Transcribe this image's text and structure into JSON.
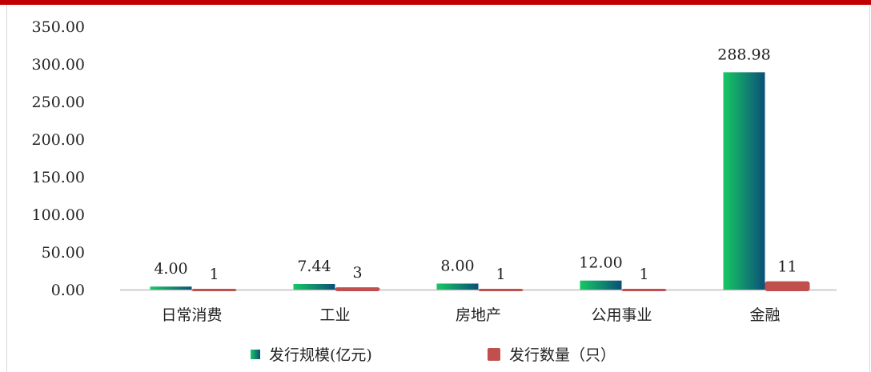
{
  "chart_data": {
    "type": "bar",
    "categories": [
      "日常消费",
      "工业",
      "房地产",
      "公用事业",
      "金融"
    ],
    "series": [
      {
        "name": "发行规模(亿元)",
        "values": [
          4.0,
          7.44,
          8.0,
          12.0,
          288.98
        ],
        "labels": [
          "4.00",
          "7.44",
          "8.00",
          "12.00",
          "288.98"
        ]
      },
      {
        "name": "发行数量（只）",
        "values": [
          1,
          3,
          1,
          1,
          11
        ],
        "labels": [
          "1",
          "3",
          "1",
          "1",
          "11"
        ]
      }
    ],
    "y_ticks": [
      "0.00",
      "50.00",
      "100.00",
      "150.00",
      "200.00",
      "250.00",
      "300.00",
      "350.00"
    ],
    "ylim": [
      0,
      350
    ],
    "grid": false,
    "legend": "bottom",
    "colors": {
      "scale_start": "#17c864",
      "scale_end": "#0b4f78",
      "count": "#c0504d",
      "axis": "#bfbfbf",
      "accent_rule": "#c00000"
    }
  }
}
